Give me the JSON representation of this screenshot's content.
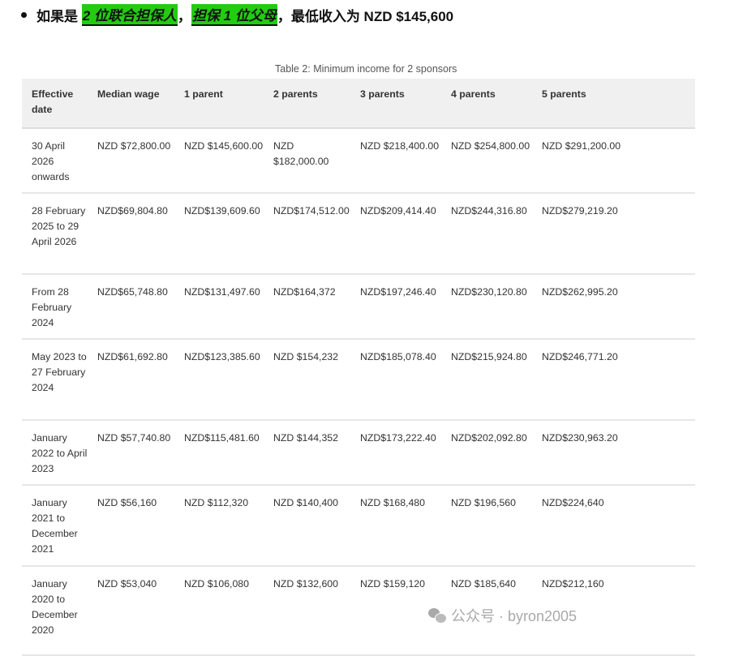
{
  "bullet": {
    "prefix": "如果是",
    "highlight1": "2 位联合担保人",
    "sep": "，",
    "highlight2": "担保 1 位父母",
    "suffix": "，最低收入为 NZD $145,600"
  },
  "table": {
    "caption": "Table 2: Minimum income for 2 sponsors",
    "headers": [
      "Effective date",
      "Median wage",
      "1 parent",
      "2 parents",
      "3 parents",
      "4 parents",
      "5 parents"
    ],
    "rows": [
      [
        "30 April 2026 onwards",
        "NZD $72,800.00",
        "NZD $145,600.00",
        "NZD $182,000.00",
        "NZD $218,400.00",
        "NZD $254,800.00",
        "NZD $291,200.00"
      ],
      [
        "28 February 2025 to 29 April 2026",
        "NZD$69,804.80",
        "NZD$139,609.60",
        "NZD$174,512.00",
        "NZD$209,414.40",
        "NZD$244,316.80",
        "NZD$279,219.20"
      ],
      [
        "From 28 February 2024",
        "NZD$65,748.80",
        "NZD$131,497.60",
        "NZD$164,372",
        "NZD$197,246.40",
        "NZD$230,120.80",
        "NZD$262,995.20"
      ],
      [
        "May 2023 to 27 February 2024",
        "NZD$61,692.80",
        "NZD$123,385.60",
        "NZD $154,232",
        "NZD$185,078.40",
        "NZD$215,924.80",
        "NZD$246,771.20"
      ],
      [
        "January 2022 to April 2023",
        "NZD $57,740.80",
        "NZD$115,481.60",
        "NZD $144,352",
        "NZD$173,222.40",
        "NZD$202,092.80",
        "NZD$230,963.20"
      ],
      [
        "January 2021 to December 2021",
        "NZD $56,160",
        "NZD $112,320",
        "NZD $140,400",
        "NZD $168,480",
        "NZD $196,560",
        "NZD$224,640"
      ],
      [
        "January 2020 to December 2020",
        "NZD $53,040",
        "NZD $106,080",
        "NZD $132,600",
        "NZD $159,120",
        "NZD $185,640",
        "NZD$212,160"
      ]
    ]
  },
  "watermark": {
    "icon": "wechat-icon",
    "text": "公众号 · byron2005"
  },
  "colors": {
    "highlight": "#22cc11",
    "header_bg": "#f0f0f0"
  }
}
